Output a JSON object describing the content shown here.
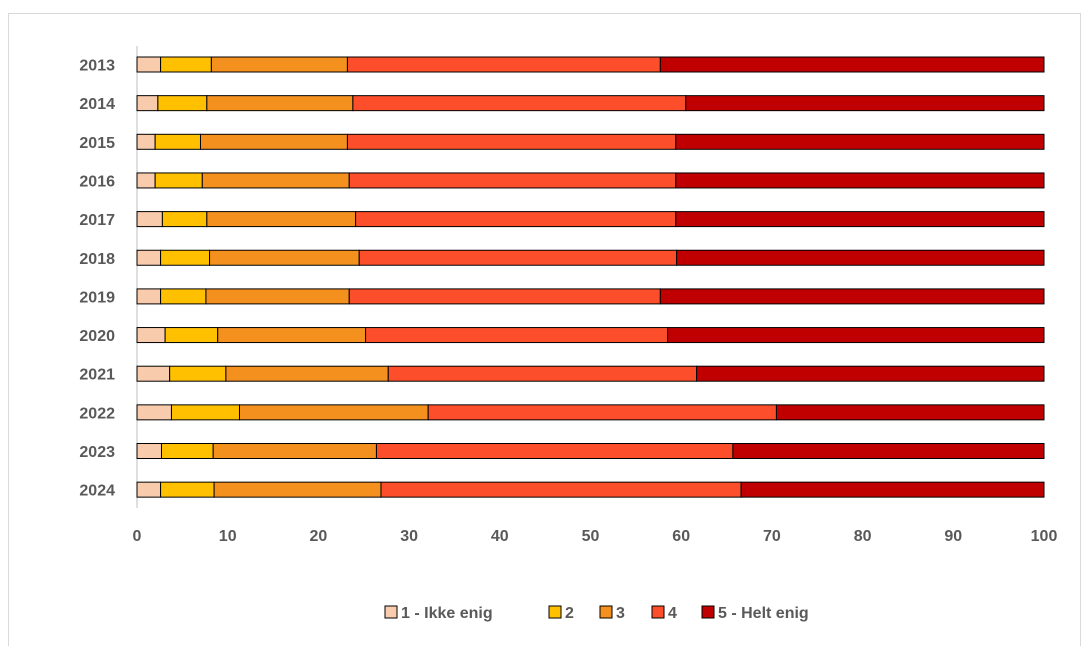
{
  "chart_data": {
    "type": "bar",
    "orientation": "horizontal",
    "stacked": true,
    "categories": [
      "2013",
      "2014",
      "2015",
      "2016",
      "2017",
      "2018",
      "2019",
      "2020",
      "2021",
      "2022",
      "2023",
      "2024"
    ],
    "series": [
      {
        "name": "1 - Ikke enig",
        "color": "#f8cbad",
        "values": [
          2.6,
          2.3,
          2.0,
          2.0,
          2.8,
          2.6,
          2.6,
          3.1,
          3.6,
          3.8,
          2.7,
          2.6
        ]
      },
      {
        "name": "2",
        "color": "#ffc000",
        "values": [
          5.6,
          5.4,
          5.0,
          5.2,
          4.9,
          5.4,
          5.0,
          5.8,
          6.2,
          7.5,
          5.7,
          5.9
        ]
      },
      {
        "name": "3",
        "color": "#f4901e",
        "values": [
          15.0,
          16.1,
          16.2,
          16.2,
          16.4,
          16.5,
          15.8,
          16.3,
          17.9,
          20.8,
          18.0,
          18.4
        ]
      },
      {
        "name": "4",
        "color": "#fc4e2a",
        "values": [
          34.5,
          36.7,
          36.2,
          36.0,
          35.3,
          35.0,
          34.3,
          33.3,
          34.0,
          38.4,
          39.3,
          39.7
        ]
      },
      {
        "name": "5 - Helt enig",
        "color": "#c00000",
        "values": [
          42.3,
          39.5,
          40.6,
          40.6,
          40.6,
          40.5,
          42.3,
          41.5,
          38.3,
          29.5,
          34.3,
          33.4
        ]
      }
    ],
    "xlim": [
      0,
      100
    ],
    "xticks": [
      0,
      10,
      20,
      30,
      40,
      50,
      60,
      70,
      80,
      90,
      100
    ],
    "title": "",
    "xlabel": "",
    "ylabel": "",
    "grid": false,
    "legend": "bottom"
  }
}
